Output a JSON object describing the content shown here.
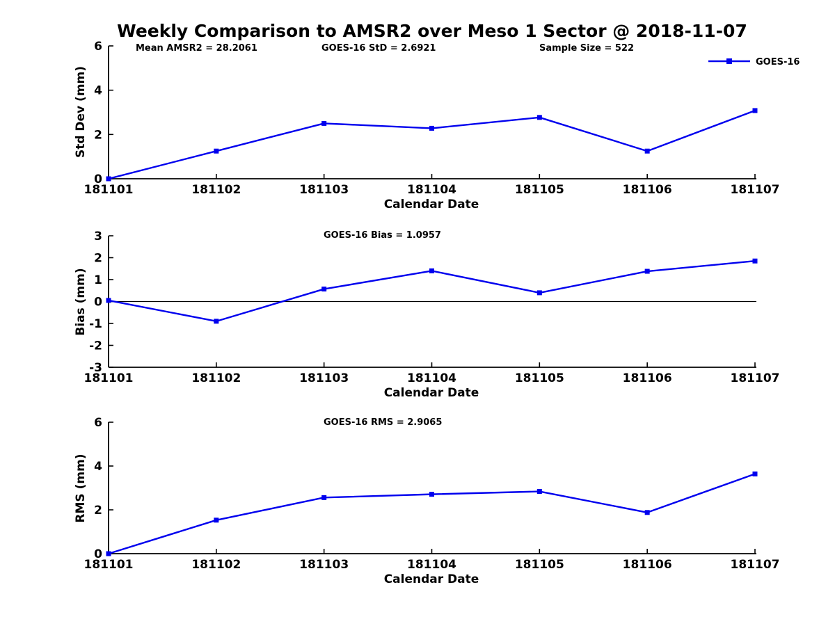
{
  "page": {
    "title": "Weekly Comparison to AMSR2 over Meso 1 Sector @ 2018-11-07"
  },
  "colors": {
    "line": "#0000EE",
    "axis": "#000000",
    "text": "#000000",
    "background": "#FFFFFF"
  },
  "legend": {
    "label": "GOES-16",
    "position": "top-right"
  },
  "chart_data": [
    {
      "type": "line",
      "name": "std-dev-vs-date",
      "categories": [
        "181101",
        "181102",
        "181103",
        "181104",
        "181105",
        "181106",
        "181107"
      ],
      "series": [
        {
          "name": "GOES-16",
          "values": [
            0.0,
            1.25,
            2.5,
            2.28,
            2.77,
            1.25,
            3.08
          ]
        }
      ],
      "xlabel": "Calendar Date",
      "ylabel": "Std Dev (mm)",
      "ylim": [
        0,
        6
      ],
      "yticks": [
        0,
        2,
        4,
        6
      ],
      "grid": false,
      "zero_line": false,
      "annotations": [
        {
          "text": "Mean AMSR2 = 28.2061"
        },
        {
          "text": "GOES-16 StD = 2.6921"
        },
        {
          "text": "Sample Size = 522"
        }
      ]
    },
    {
      "type": "line",
      "name": "bias-vs-date",
      "categories": [
        "181101",
        "181102",
        "181103",
        "181104",
        "181105",
        "181106",
        "181107"
      ],
      "series": [
        {
          "name": "GOES-16",
          "values": [
            0.05,
            -0.9,
            0.57,
            1.4,
            0.4,
            1.38,
            1.85
          ]
        }
      ],
      "xlabel": "Calendar Date",
      "ylabel": "Bias (mm)",
      "ylim": [
        -3,
        3
      ],
      "yticks": [
        -3,
        -2,
        -1,
        0,
        1,
        2,
        3
      ],
      "grid": false,
      "zero_line": true,
      "annotations": [
        {
          "text": "GOES-16 Bias  = 1.0957"
        }
      ]
    },
    {
      "type": "line",
      "name": "rms-vs-date",
      "categories": [
        "181101",
        "181102",
        "181103",
        "181104",
        "181105",
        "181106",
        "181107"
      ],
      "series": [
        {
          "name": "GOES-16",
          "values": [
            0.0,
            1.53,
            2.56,
            2.71,
            2.84,
            1.88,
            3.64
          ]
        }
      ],
      "xlabel": "Calendar Date",
      "ylabel": "RMS (mm)",
      "ylim": [
        0,
        6
      ],
      "yticks": [
        0,
        2,
        4,
        6
      ],
      "grid": false,
      "zero_line": false,
      "annotations": [
        {
          "text": "GOES-16 RMS = 2.9065"
        }
      ]
    }
  ]
}
